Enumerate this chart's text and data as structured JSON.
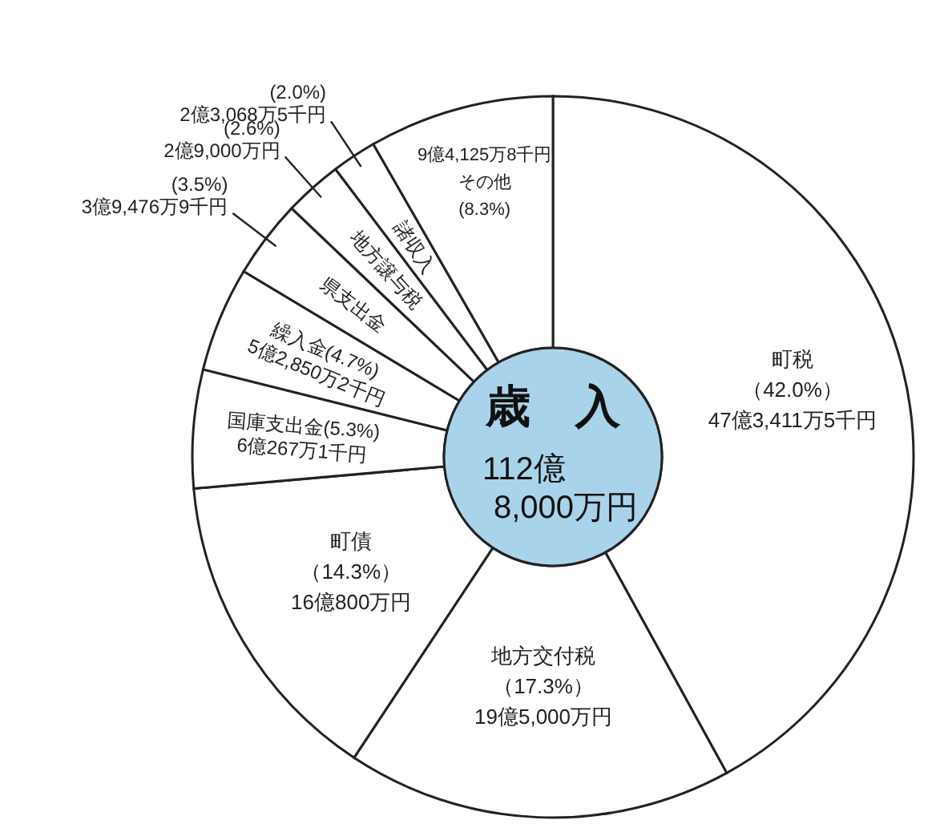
{
  "chart_data": {
    "type": "donut",
    "title": "歳　入",
    "subtitle": "112億\n8,000万円",
    "categories": [
      "町税",
      "地方交付税",
      "町債",
      "国庫支出金",
      "繰入金",
      "県支出金",
      "地方譲与税",
      "諸収入",
      "その他"
    ],
    "values": [
      42.0,
      17.3,
      14.3,
      5.3,
      4.7,
      3.5,
      2.6,
      2.0,
      8.3
    ],
    "colors": [
      "#ffffff",
      "#ffffff",
      "#ffffff",
      "#ffffff",
      "#ffffff",
      "#ffffff",
      "#ffffff",
      "#ffffff",
      "#ffffff"
    ],
    "value_labels": [
      "（42.0%）",
      "（17.3%）",
      "（14.3%）",
      "(5.3%)",
      "(4.7%)",
      "(3.5%)",
      "(2.6%)",
      "(2.0%)",
      "(8.3%)"
    ],
    "annotations": [
      {
        "text": "47億3,411万5千円",
        "x": "町税"
      },
      {
        "text": "19億5,000万円",
        "x": "地方交付税"
      },
      {
        "text": "16億800万円",
        "x": "町債"
      },
      {
        "text": "6億267万1千円",
        "x": "国庫支出金"
      },
      {
        "text": "5億2,850万2千円",
        "x": "繰入金"
      },
      {
        "text": "3億9,476万9千円",
        "x": "県支出金"
      },
      {
        "text": "2億9,000万円",
        "x": "地方譲与税"
      },
      {
        "text": "2億3,068万5千円",
        "x": "諸収入"
      },
      {
        "text": "9億4,125万8千円",
        "x": "その他"
      }
    ],
    "legend": false
  }
}
